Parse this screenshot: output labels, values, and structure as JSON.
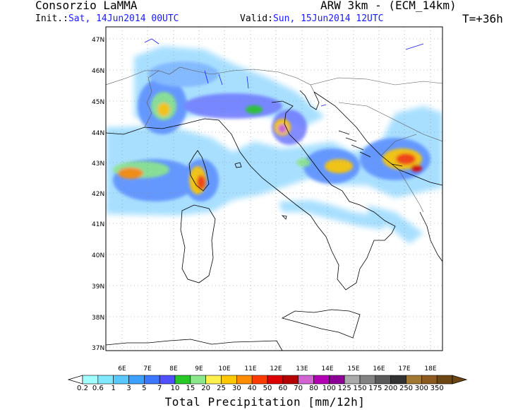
{
  "header": {
    "org": "Consorzio LaMMA",
    "model": "ARW 3km - (ECM_14km)",
    "init_label": "Init.:",
    "init_value": "Sat, 14Jun2014 00UTC",
    "valid_label": "Valid:",
    "valid_value": "Sun, 15Jun2014 12UTC",
    "lead_time": "T=+36h"
  },
  "map": {
    "lat_labels": [
      "47N",
      "46N",
      "45N",
      "44N",
      "43N",
      "42N",
      "41N",
      "40N",
      "39N",
      "38N",
      "37N"
    ],
    "lon_labels": [
      "6E",
      "7E",
      "8E",
      "9E",
      "10E",
      "11E",
      "12E",
      "13E",
      "14E",
      "15E",
      "16E",
      "17E",
      "18E"
    ]
  },
  "colorbar": {
    "title": "Total Precipitation [mm/12h]",
    "labels": [
      "0.2",
      "0.6",
      "1",
      "3",
      "5",
      "7",
      "10",
      "15",
      "20",
      "25",
      "30",
      "40",
      "50",
      "60",
      "70",
      "80",
      "100",
      "125",
      "150",
      "175",
      "200",
      "250",
      "300",
      "350"
    ],
    "colors": [
      "#a0ffff",
      "#80e8ff",
      "#5ac8ff",
      "#3ca0ff",
      "#3c78ff",
      "#5050ff",
      "#28c828",
      "#8ce68c",
      "#fff050",
      "#ffc800",
      "#ff8c00",
      "#ff3c00",
      "#dc0000",
      "#b40000",
      "#d264d2",
      "#b400b4",
      "#8c0096",
      "#aaaaaa",
      "#828282",
      "#5a5a5a",
      "#323232",
      "#a07832",
      "#8c5a1e",
      "#6e4614"
    ]
  }
}
